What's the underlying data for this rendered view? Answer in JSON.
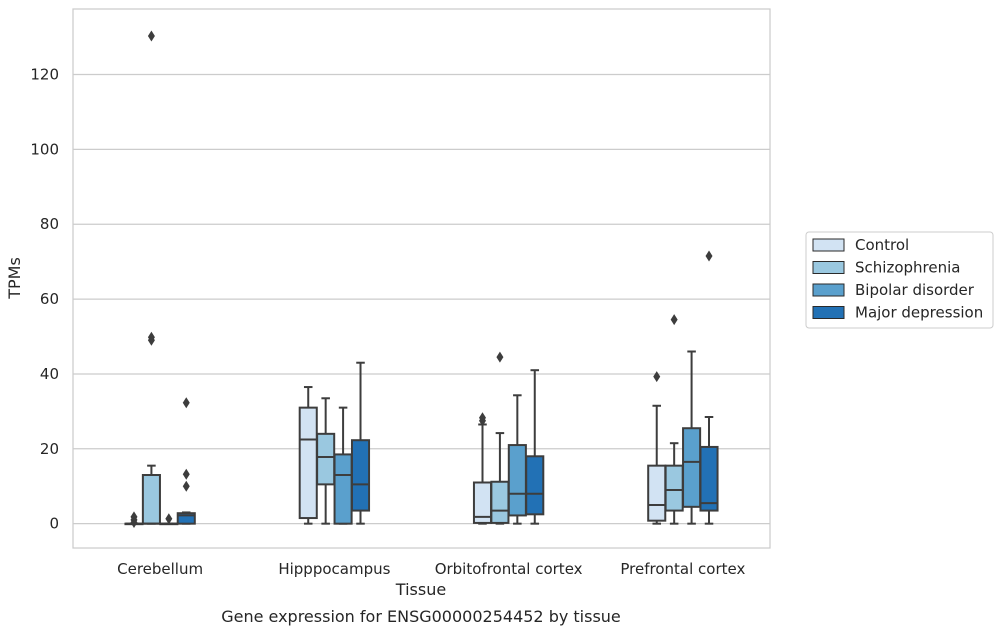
{
  "chart_data": {
    "type": "box",
    "title": "",
    "caption": "Gene expression for ENSG00000254452 by tissue",
    "xlabel": "Tissue",
    "ylabel": "TPMs",
    "ylim": [
      -6.5,
      137.5
    ],
    "yticks": [
      0,
      20,
      40,
      60,
      80,
      100,
      120
    ],
    "grid": "horizontal",
    "legend_position": "right",
    "categories": [
      "Cerebellum",
      "Hipppocampus",
      "Orbitofrontal cortex",
      "Prefrontal cortex"
    ],
    "series": [
      {
        "name": "Control",
        "color": "#d2e3f3",
        "boxes": [
          {
            "whislo": 0,
            "q1": 0,
            "med": 0,
            "q3": 0,
            "whishi": 0,
            "fliers": [
              0.3,
              1.0,
              1.8
            ]
          },
          {
            "whislo": 0,
            "q1": 1.5,
            "med": 22.5,
            "q3": 31,
            "whishi": 36.5,
            "fliers": []
          },
          {
            "whislo": 0,
            "q1": 0.2,
            "med": 1.8,
            "q3": 11,
            "whishi": 26.5,
            "fliers": [
              27.5,
              28.3
            ]
          },
          {
            "whislo": 0,
            "q1": 0.8,
            "med": 5,
            "q3": 15.5,
            "whishi": 31.5,
            "fliers": [
              39.3
            ]
          }
        ]
      },
      {
        "name": "Schizophrenia",
        "color": "#9ac8e0",
        "boxes": [
          {
            "whislo": 0,
            "q1": 0,
            "med": 0,
            "q3": 13,
            "whishi": 15.5,
            "fliers": [
              49,
              49.8,
              130.3
            ]
          },
          {
            "whislo": 0,
            "q1": 10.5,
            "med": 17.8,
            "q3": 24,
            "whishi": 33.5,
            "fliers": []
          },
          {
            "whislo": 0,
            "q1": 0.2,
            "med": 3.5,
            "q3": 11.2,
            "whishi": 24.2,
            "fliers": [
              44.5
            ]
          },
          {
            "whislo": 0,
            "q1": 3.5,
            "med": 9,
            "q3": 15.5,
            "whishi": 21.5,
            "fliers": [
              54.5
            ]
          }
        ]
      },
      {
        "name": "Bipolar disorder",
        "color": "#5aa0cd",
        "boxes": [
          {
            "whislo": 0,
            "q1": 0,
            "med": 0,
            "q3": 0,
            "whishi": 0,
            "fliers": [
              1.3
            ]
          },
          {
            "whislo": 0,
            "q1": 0,
            "med": 13,
            "q3": 18.5,
            "whishi": 31,
            "fliers": []
          },
          {
            "whislo": 0,
            "q1": 2.2,
            "med": 8,
            "q3": 21,
            "whishi": 34.3,
            "fliers": []
          },
          {
            "whislo": 0,
            "q1": 4.5,
            "med": 16.5,
            "q3": 25.5,
            "whishi": 46,
            "fliers": []
          }
        ]
      },
      {
        "name": "Major depression",
        "color": "#2271b5",
        "boxes": [
          {
            "whislo": 0,
            "q1": 0,
            "med": 2.2,
            "q3": 2.8,
            "whishi": 3,
            "fliers": [
              10,
              13.2,
              32.3
            ]
          },
          {
            "whislo": 0,
            "q1": 3.5,
            "med": 10.5,
            "q3": 22.3,
            "whishi": 43,
            "fliers": []
          },
          {
            "whislo": 0,
            "q1": 2.5,
            "med": 8,
            "q3": 18,
            "whishi": 41,
            "fliers": []
          },
          {
            "whislo": 0,
            "q1": 3.5,
            "med": 5.5,
            "q3": 20.5,
            "whishi": 28.5,
            "fliers": [
              71.5
            ]
          }
        ]
      }
    ]
  }
}
